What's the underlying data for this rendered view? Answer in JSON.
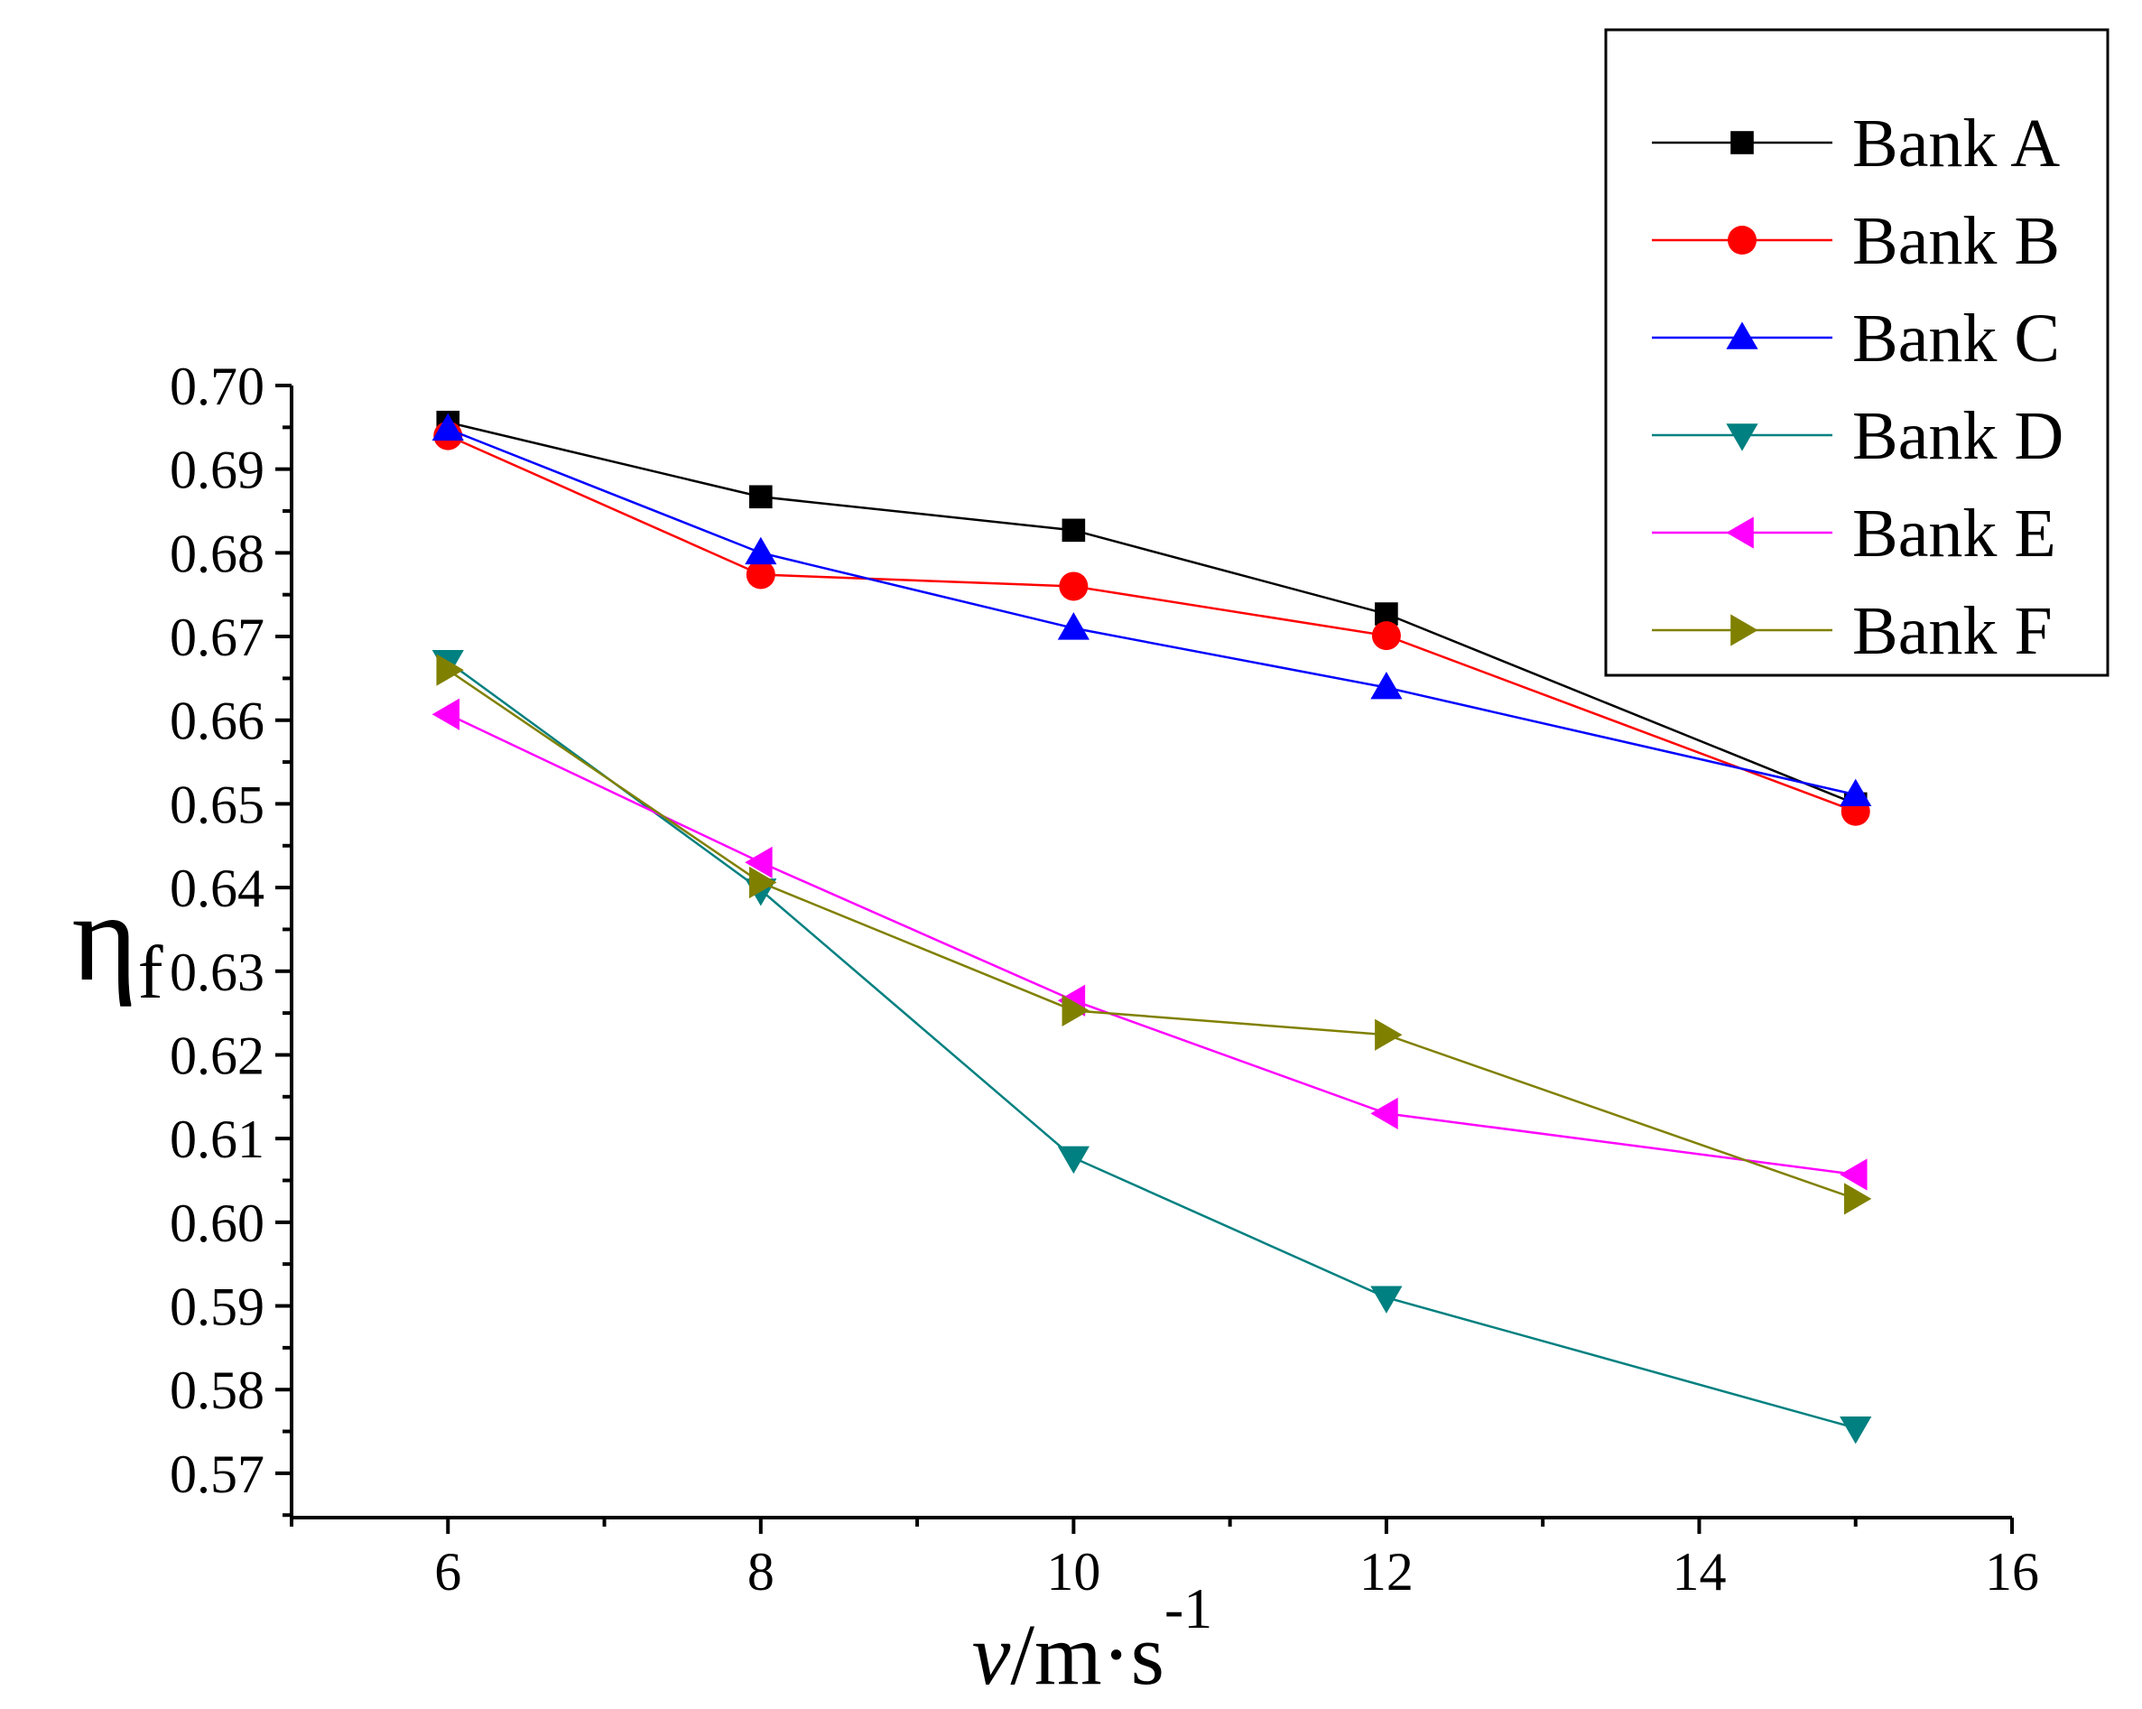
{
  "chart_data": {
    "type": "line",
    "title": "",
    "xlabel": {
      "italic": "v",
      "main": "/m·s",
      "sup": "-1"
    },
    "ylabel": {
      "main": "η",
      "sub": "f"
    },
    "xlim": [
      5,
      16
    ],
    "ylim": [
      0.5647,
      0.7
    ],
    "x_major_ticks": [
      6,
      8,
      10,
      12,
      14,
      16
    ],
    "x_minor_ticks": [
      5,
      7,
      9,
      11,
      13,
      15
    ],
    "y_major_ticks": [
      0.57,
      0.58,
      0.59,
      0.6,
      0.61,
      0.62,
      0.63,
      0.64,
      0.65,
      0.66,
      0.67,
      0.68,
      0.69,
      0.7
    ],
    "x_tick_labels": [
      "6",
      "8",
      "10",
      "12",
      "14",
      "16"
    ],
    "y_tick_labels": [
      "0.57",
      "0.58",
      "0.59",
      "0.60",
      "0.61",
      "0.62",
      "0.63",
      "0.64",
      "0.65",
      "0.66",
      "0.67",
      "0.68",
      "0.69",
      "0.70"
    ],
    "legend_position": "top-right",
    "series": [
      {
        "name": "Bank A",
        "color": "#000000",
        "marker": "square",
        "x": [
          6,
          8,
          10,
          12,
          15
        ],
        "values": [
          0.6956,
          0.6867,
          0.6827,
          0.6727,
          0.65
        ]
      },
      {
        "name": "Bank B",
        "color": "#ff0000",
        "marker": "circle",
        "x": [
          6,
          8,
          10,
          12,
          15
        ],
        "values": [
          0.694,
          0.6774,
          0.676,
          0.6701,
          0.6491
        ]
      },
      {
        "name": "Bank C",
        "color": "#0000ff",
        "marker": "triangle-up",
        "x": [
          6,
          8,
          10,
          12,
          15
        ],
        "values": [
          0.6948,
          0.68,
          0.671,
          0.6639,
          0.6511
        ]
      },
      {
        "name": "Bank D",
        "color": "#008080",
        "marker": "triangle-down",
        "x": [
          6,
          8,
          10,
          12,
          15
        ],
        "values": [
          0.667,
          0.6397,
          0.6077,
          0.591,
          0.5754
        ]
      },
      {
        "name": "Bank E",
        "color": "#ff00ff",
        "marker": "triangle-left",
        "x": [
          6,
          8,
          10,
          12,
          15
        ],
        "values": [
          0.6607,
          0.643,
          0.6265,
          0.613,
          0.6057
        ]
      },
      {
        "name": "Bank F",
        "color": "#808000",
        "marker": "triangle-right",
        "x": [
          6,
          8,
          10,
          12,
          15
        ],
        "values": [
          0.666,
          0.6406,
          0.6253,
          0.6224,
          0.6028
        ]
      }
    ]
  }
}
